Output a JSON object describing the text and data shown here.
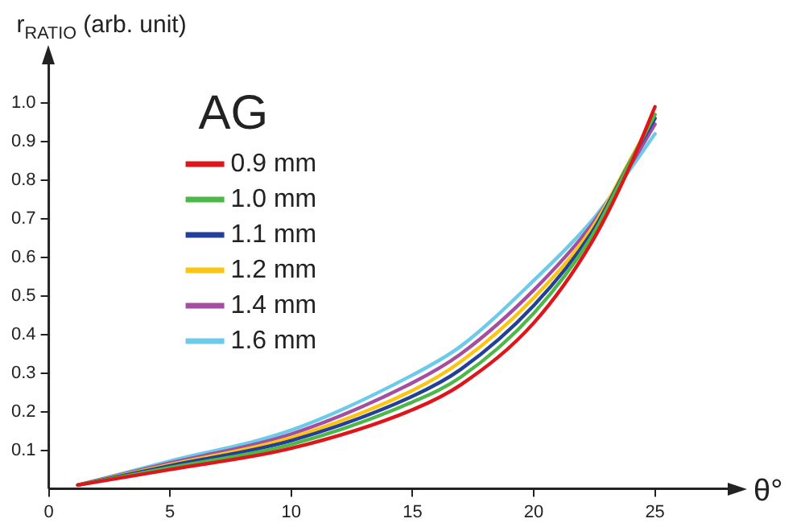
{
  "chart_data": {
    "type": "line",
    "ylabel": "r$_{RATIO}$ (arb. unit)",
    "xlabel": "θ°",
    "legend_title": "AG",
    "legend": "top left",
    "grid": false,
    "marker": "none",
    "line_style": "solid",
    "xlim": [
      0,
      28
    ],
    "xticks": [
      0,
      5,
      10,
      15,
      20,
      25
    ],
    "ylim": [
      0,
      1.1
    ],
    "yticks": [
      0.1,
      0.2,
      0.3,
      0.4,
      0.5,
      0.6,
      0.7,
      0.8,
      0.9,
      {
        "value": 1,
        "label": "1.0"
      }
    ],
    "x": [
      1.2,
      5,
      10,
      15,
      17,
      20,
      22.4,
      24,
      25
    ],
    "series": [
      {
        "name": "0.9 mm",
        "color": "#e0151b",
        "values": [
          0.01,
          0.05,
          0.105,
          0.205,
          0.27,
          0.43,
          0.64,
          0.84,
          0.99
        ]
      },
      {
        "name": "1.0 mm",
        "color": "#4cb848",
        "values": [
          0.01,
          0.055,
          0.115,
          0.225,
          0.29,
          0.455,
          0.655,
          0.85,
          0.97
        ]
      },
      {
        "name": "1.1 mm",
        "color": "#243f99",
        "values": [
          0.01,
          0.06,
          0.125,
          0.24,
          0.31,
          0.475,
          0.665,
          0.85,
          0.96
        ]
      },
      {
        "name": "1.2 mm",
        "color": "#fcc512",
        "values": [
          0.01,
          0.063,
          0.133,
          0.255,
          0.33,
          0.495,
          0.675,
          0.855,
          0.97
        ]
      },
      {
        "name": "1.4 mm",
        "color": "#a44ea2",
        "values": [
          0.01,
          0.067,
          0.142,
          0.275,
          0.35,
          0.515,
          0.685,
          0.84,
          0.945
        ]
      },
      {
        "name": "1.6 mm",
        "color": "#6ccbe8",
        "values": [
          0.01,
          0.072,
          0.152,
          0.295,
          0.37,
          0.54,
          0.695,
          0.83,
          0.92
        ]
      }
    ]
  }
}
